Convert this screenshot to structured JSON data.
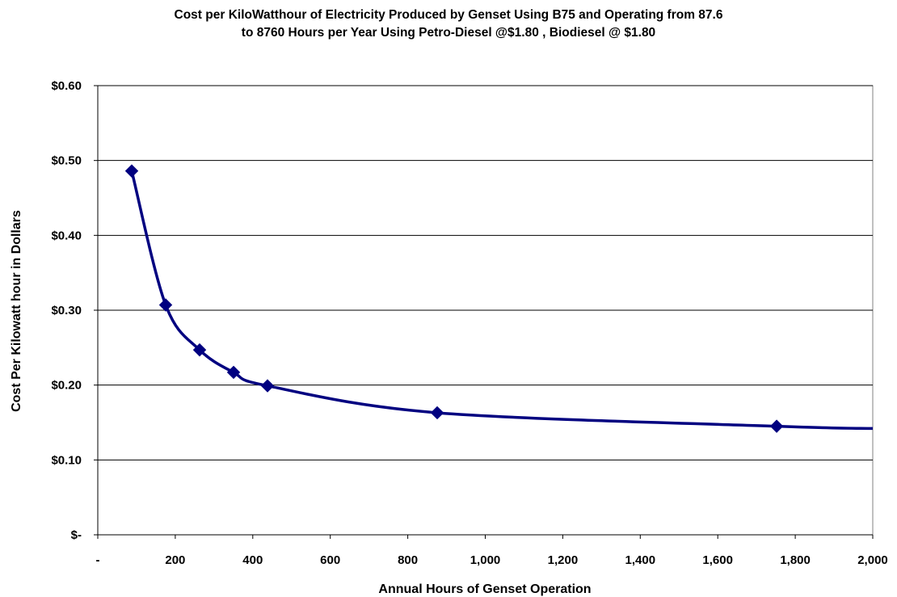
{
  "chart_data": {
    "type": "line",
    "title_line1": "Cost per KiloWatthour of Electricity Produced by Genset Using B75 and Operating from 87.6",
    "title_line2": "to 8760 Hours per Year Using Petro-Diesel @$1.80 , Biodiesel @ $1.80",
    "xlabel": "Annual Hours of Genset Operation",
    "ylabel": "Cost Per Kilowatt hour in Dollars",
    "xlim": [
      0,
      2000
    ],
    "ylim": [
      0,
      0.6
    ],
    "x_ticks": [
      {
        "value": 0,
        "label": "-"
      },
      {
        "value": 200,
        "label": "200"
      },
      {
        "value": 400,
        "label": "400"
      },
      {
        "value": 600,
        "label": "600"
      },
      {
        "value": 800,
        "label": "800"
      },
      {
        "value": 1000,
        "label": "1,000"
      },
      {
        "value": 1200,
        "label": "1,200"
      },
      {
        "value": 1400,
        "label": "1,400"
      },
      {
        "value": 1600,
        "label": "1,600"
      },
      {
        "value": 1800,
        "label": "1,800"
      },
      {
        "value": 2000,
        "label": "2,000"
      }
    ],
    "y_ticks": [
      {
        "value": 0,
        "label": "$-"
      },
      {
        "value": 0.1,
        "label": "$0.10"
      },
      {
        "value": 0.2,
        "label": "$0.20"
      },
      {
        "value": 0.3,
        "label": "$0.30"
      },
      {
        "value": 0.4,
        "label": "$0.40"
      },
      {
        "value": 0.5,
        "label": "$0.50"
      },
      {
        "value": 0.6,
        "label": "$0.60"
      }
    ],
    "grid": "horizontal",
    "legend": "none",
    "series": [
      {
        "color": "#000080",
        "marker": "diamond",
        "points": [
          {
            "x": 87.6,
            "y": 0.486
          },
          {
            "x": 175.2,
            "y": 0.307
          },
          {
            "x": 262.8,
            "y": 0.247
          },
          {
            "x": 350.4,
            "y": 0.217
          },
          {
            "x": 438,
            "y": 0.199
          },
          {
            "x": 876,
            "y": 0.163
          },
          {
            "x": 1752,
            "y": 0.145
          }
        ],
        "line_continues_to": {
          "x": 2000,
          "y": 0.142
        }
      }
    ]
  }
}
